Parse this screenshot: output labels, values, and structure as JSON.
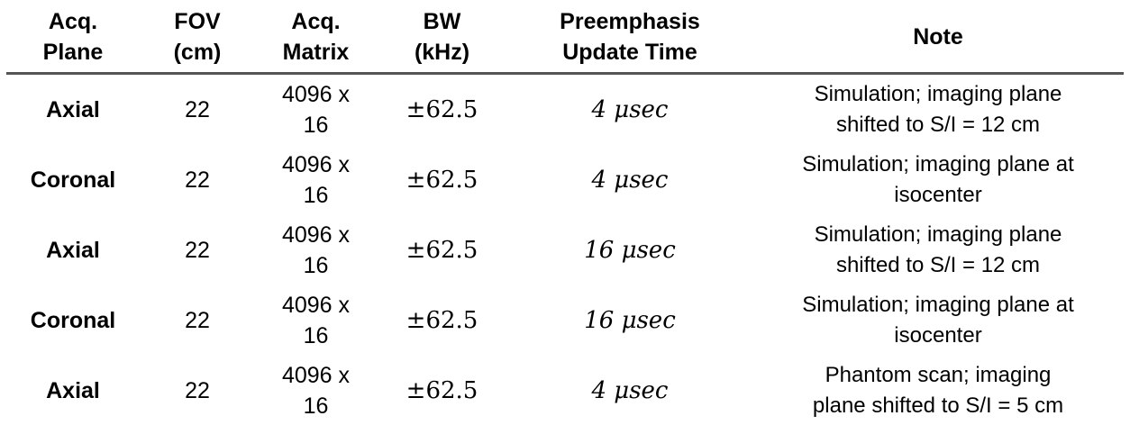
{
  "colors": {
    "background": "#ffffff",
    "text": "#000000",
    "header_rule": "#555555"
  },
  "table": {
    "columns": [
      {
        "id": "plane",
        "label": "Acq.\nPlane"
      },
      {
        "id": "fov",
        "label": "FOV\n(cm)"
      },
      {
        "id": "matrix",
        "label": "Acq.\nMatrix"
      },
      {
        "id": "bw",
        "label": "BW\n(kHz)"
      },
      {
        "id": "preemphasis",
        "label": "Preemphasis\nUpdate Time"
      },
      {
        "id": "note",
        "label": "Note"
      }
    ],
    "rows": [
      {
        "plane": "Axial",
        "fov": "22",
        "matrix": "4096 x\n16",
        "bw": "±62.5",
        "preemphasis": "4 μsec",
        "note": "Simulation; imaging plane\nshifted to S/I = 12 cm"
      },
      {
        "plane": "Coronal",
        "fov": "22",
        "matrix": "4096 x\n16",
        "bw": "±62.5",
        "preemphasis": "4 μsec",
        "note": "Simulation; imaging plane at\nisocenter"
      },
      {
        "plane": "Axial",
        "fov": "22",
        "matrix": "4096 x\n16",
        "bw": "±62.5",
        "preemphasis": "16 μsec",
        "note": "Simulation; imaging plane\nshifted to S/I = 12 cm"
      },
      {
        "plane": "Coronal",
        "fov": "22",
        "matrix": "4096 x\n16",
        "bw": "±62.5",
        "preemphasis": "16 μsec",
        "note": "Simulation; imaging plane at\nisocenter"
      },
      {
        "plane": "Axial",
        "fov": "22",
        "matrix": "4096 x\n16",
        "bw": "±62.5",
        "preemphasis": "4 μsec",
        "note": "Phantom scan; imaging\nplane shifted to S/I = 5 cm"
      }
    ]
  }
}
